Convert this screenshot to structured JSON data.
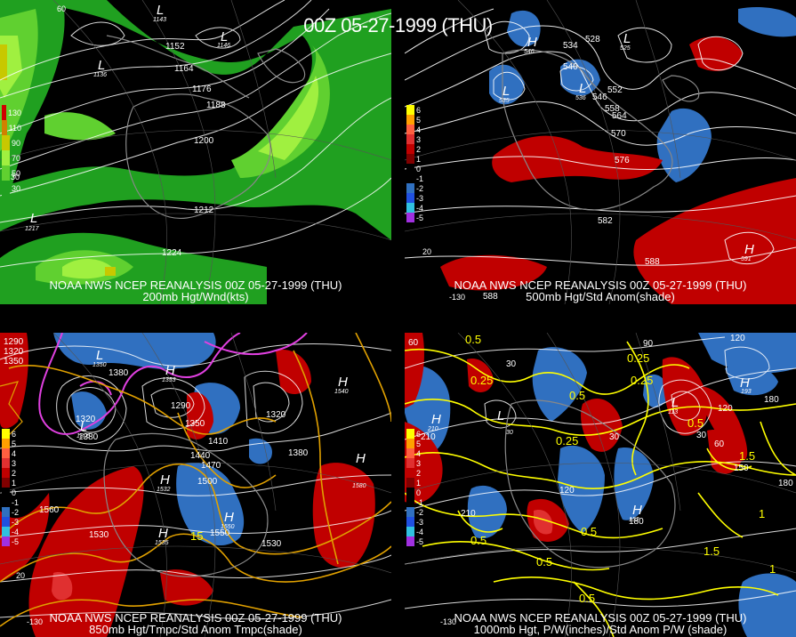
{
  "title": "00Z 05-27-1999 (THU)",
  "panels": [
    {
      "caption1": "NOAA NWS NCEP REANALYSIS 00Z 05-27-1999 (THU)",
      "caption2": "200mb Hgt/Wnd(kts)",
      "legend": [
        {
          "label": "130",
          "color": "#d00000"
        },
        {
          "label": "110",
          "color": "#d08000"
        },
        {
          "label": "90",
          "color": "#c8c800"
        },
        {
          "label": "70",
          "color": "#a0f040"
        },
        {
          "label": "50",
          "color": "#60d030"
        },
        {
          "label": "30",
          "color": "#20a020"
        }
      ],
      "contour_labels": [
        "1152",
        "1164",
        "1176",
        "1188",
        "1200",
        "1212",
        "1224"
      ],
      "systems": [
        {
          "letter": "L",
          "value": "1143"
        },
        {
          "letter": "L",
          "value": "1146"
        },
        {
          "letter": "L",
          "value": "1136"
        },
        {
          "letter": "L",
          "value": "1217"
        }
      ],
      "lats": [
        "60",
        "30"
      ]
    },
    {
      "caption1": "NOAA NWS NCEP REANALYSIS 00Z 05-27-1999 (THU)",
      "caption2": "500mb Hgt/Std Anom(shade)",
      "legend": [
        {
          "label": "6",
          "color": "#ffff00"
        },
        {
          "label": "5",
          "color": "#ffa000"
        },
        {
          "label": "4",
          "color": "#ff6040"
        },
        {
          "label": "3",
          "color": "#e03030"
        },
        {
          "label": "2",
          "color": "#c00000"
        },
        {
          "label": "1",
          "color": "#800000"
        },
        {
          "label": "0",
          "color": "#000000"
        },
        {
          "label": "-1",
          "color": "#000000"
        },
        {
          "label": "-2",
          "color": "#3070c0"
        },
        {
          "label": "-3",
          "color": "#2050e0"
        },
        {
          "label": "-4",
          "color": "#30c0e0"
        },
        {
          "label": "-5",
          "color": "#a030e0"
        }
      ],
      "contour_labels": [
        "534",
        "528",
        "540",
        "552",
        "546",
        "558",
        "564",
        "570",
        "576",
        "582",
        "588"
      ],
      "systems": [
        {
          "letter": "H",
          "value": "546"
        },
        {
          "letter": "L",
          "value": "525"
        },
        {
          "letter": "L",
          "value": "535"
        },
        {
          "letter": "L",
          "value": "536"
        },
        {
          "letter": "H",
          "value": "591"
        },
        {
          "letter": "",
          "value": "588"
        }
      ],
      "lats": [
        "20",
        "-130"
      ]
    },
    {
      "caption1": "NOAA NWS NCEP REANALYSIS 00Z 05-27-1999 (THU)",
      "caption2": "850mb Hgt/Tmpc/Std Anom Tmpc(shade)",
      "legend": [
        {
          "label": "6",
          "color": "#ffff00"
        },
        {
          "label": "5",
          "color": "#ffa000"
        },
        {
          "label": "4",
          "color": "#ff6040"
        },
        {
          "label": "3",
          "color": "#e03030"
        },
        {
          "label": "2",
          "color": "#c00000"
        },
        {
          "label": "1",
          "color": "#800000"
        },
        {
          "label": "0",
          "color": "#000000"
        },
        {
          "label": "-1",
          "color": "#000000"
        },
        {
          "label": "-2",
          "color": "#3070c0"
        },
        {
          "label": "-3",
          "color": "#2050e0"
        },
        {
          "label": "-4",
          "color": "#30c0e0"
        },
        {
          "label": "-5",
          "color": "#a030e0"
        }
      ],
      "contour_labels": [
        "1290",
        "1320",
        "1350",
        "1380",
        "1410",
        "1440",
        "1470",
        "1500",
        "1530",
        "1560",
        "1320",
        "1380",
        "1290",
        "1320",
        "1350",
        "1380",
        "1530",
        "1550"
      ],
      "temp_labels": [
        "15"
      ],
      "systems": [
        {
          "letter": "L",
          "value": "1350"
        },
        {
          "letter": "H",
          "value": "1353"
        },
        {
          "letter": "L",
          "value": "1305"
        },
        {
          "letter": "H",
          "value": "1540"
        },
        {
          "letter": "H",
          "value": "1532"
        },
        {
          "letter": "H",
          "value": "1580"
        },
        {
          "letter": "H",
          "value": "1535"
        },
        {
          "letter": "H",
          "value": "1550"
        }
      ],
      "lats": [
        "20",
        "-130"
      ]
    },
    {
      "caption1": "NOAA NWS NCEP REANALYSIS 00Z 05-27-1999 (THU)",
      "caption2": "1000mb Hgt, P/W(inches)/Std Anom P/W (shade)",
      "legend": [
        {
          "label": "6",
          "color": "#ffff00"
        },
        {
          "label": "5",
          "color": "#ffa000"
        },
        {
          "label": "4",
          "color": "#ff6040"
        },
        {
          "label": "3",
          "color": "#e03030"
        },
        {
          "label": "2",
          "color": "#c00000"
        },
        {
          "label": "1",
          "color": "#800000"
        },
        {
          "label": "0",
          "color": "#000000"
        },
        {
          "label": "-1",
          "color": "#000000"
        },
        {
          "label": "-2",
          "color": "#3070c0"
        },
        {
          "label": "-3",
          "color": "#2050e0"
        },
        {
          "label": "-4",
          "color": "#30c0e0"
        },
        {
          "label": "-5",
          "color": "#a030e0"
        }
      ],
      "contour_labels": [
        "60",
        "90",
        "120",
        "30",
        "210",
        "180",
        "120",
        "30",
        "60",
        "150",
        "180",
        "210",
        "180",
        "120",
        "30"
      ],
      "pw_labels": [
        "0.5",
        "0.25",
        "0.25",
        "0.25",
        "0.5",
        "0.25",
        "0.5",
        "0.5",
        "1.5",
        "1",
        "0.5",
        "0.5",
        "0.5",
        "1.5",
        "1"
      ],
      "systems": [
        {
          "letter": "L",
          "value": "30"
        },
        {
          "letter": "H",
          "value": "210"
        },
        {
          "letter": "H",
          "value": "193"
        },
        {
          "letter": "L",
          "value": "113"
        },
        {
          "letter": "H",
          "value": "152"
        }
      ],
      "lats": [
        "-130"
      ]
    }
  ]
}
